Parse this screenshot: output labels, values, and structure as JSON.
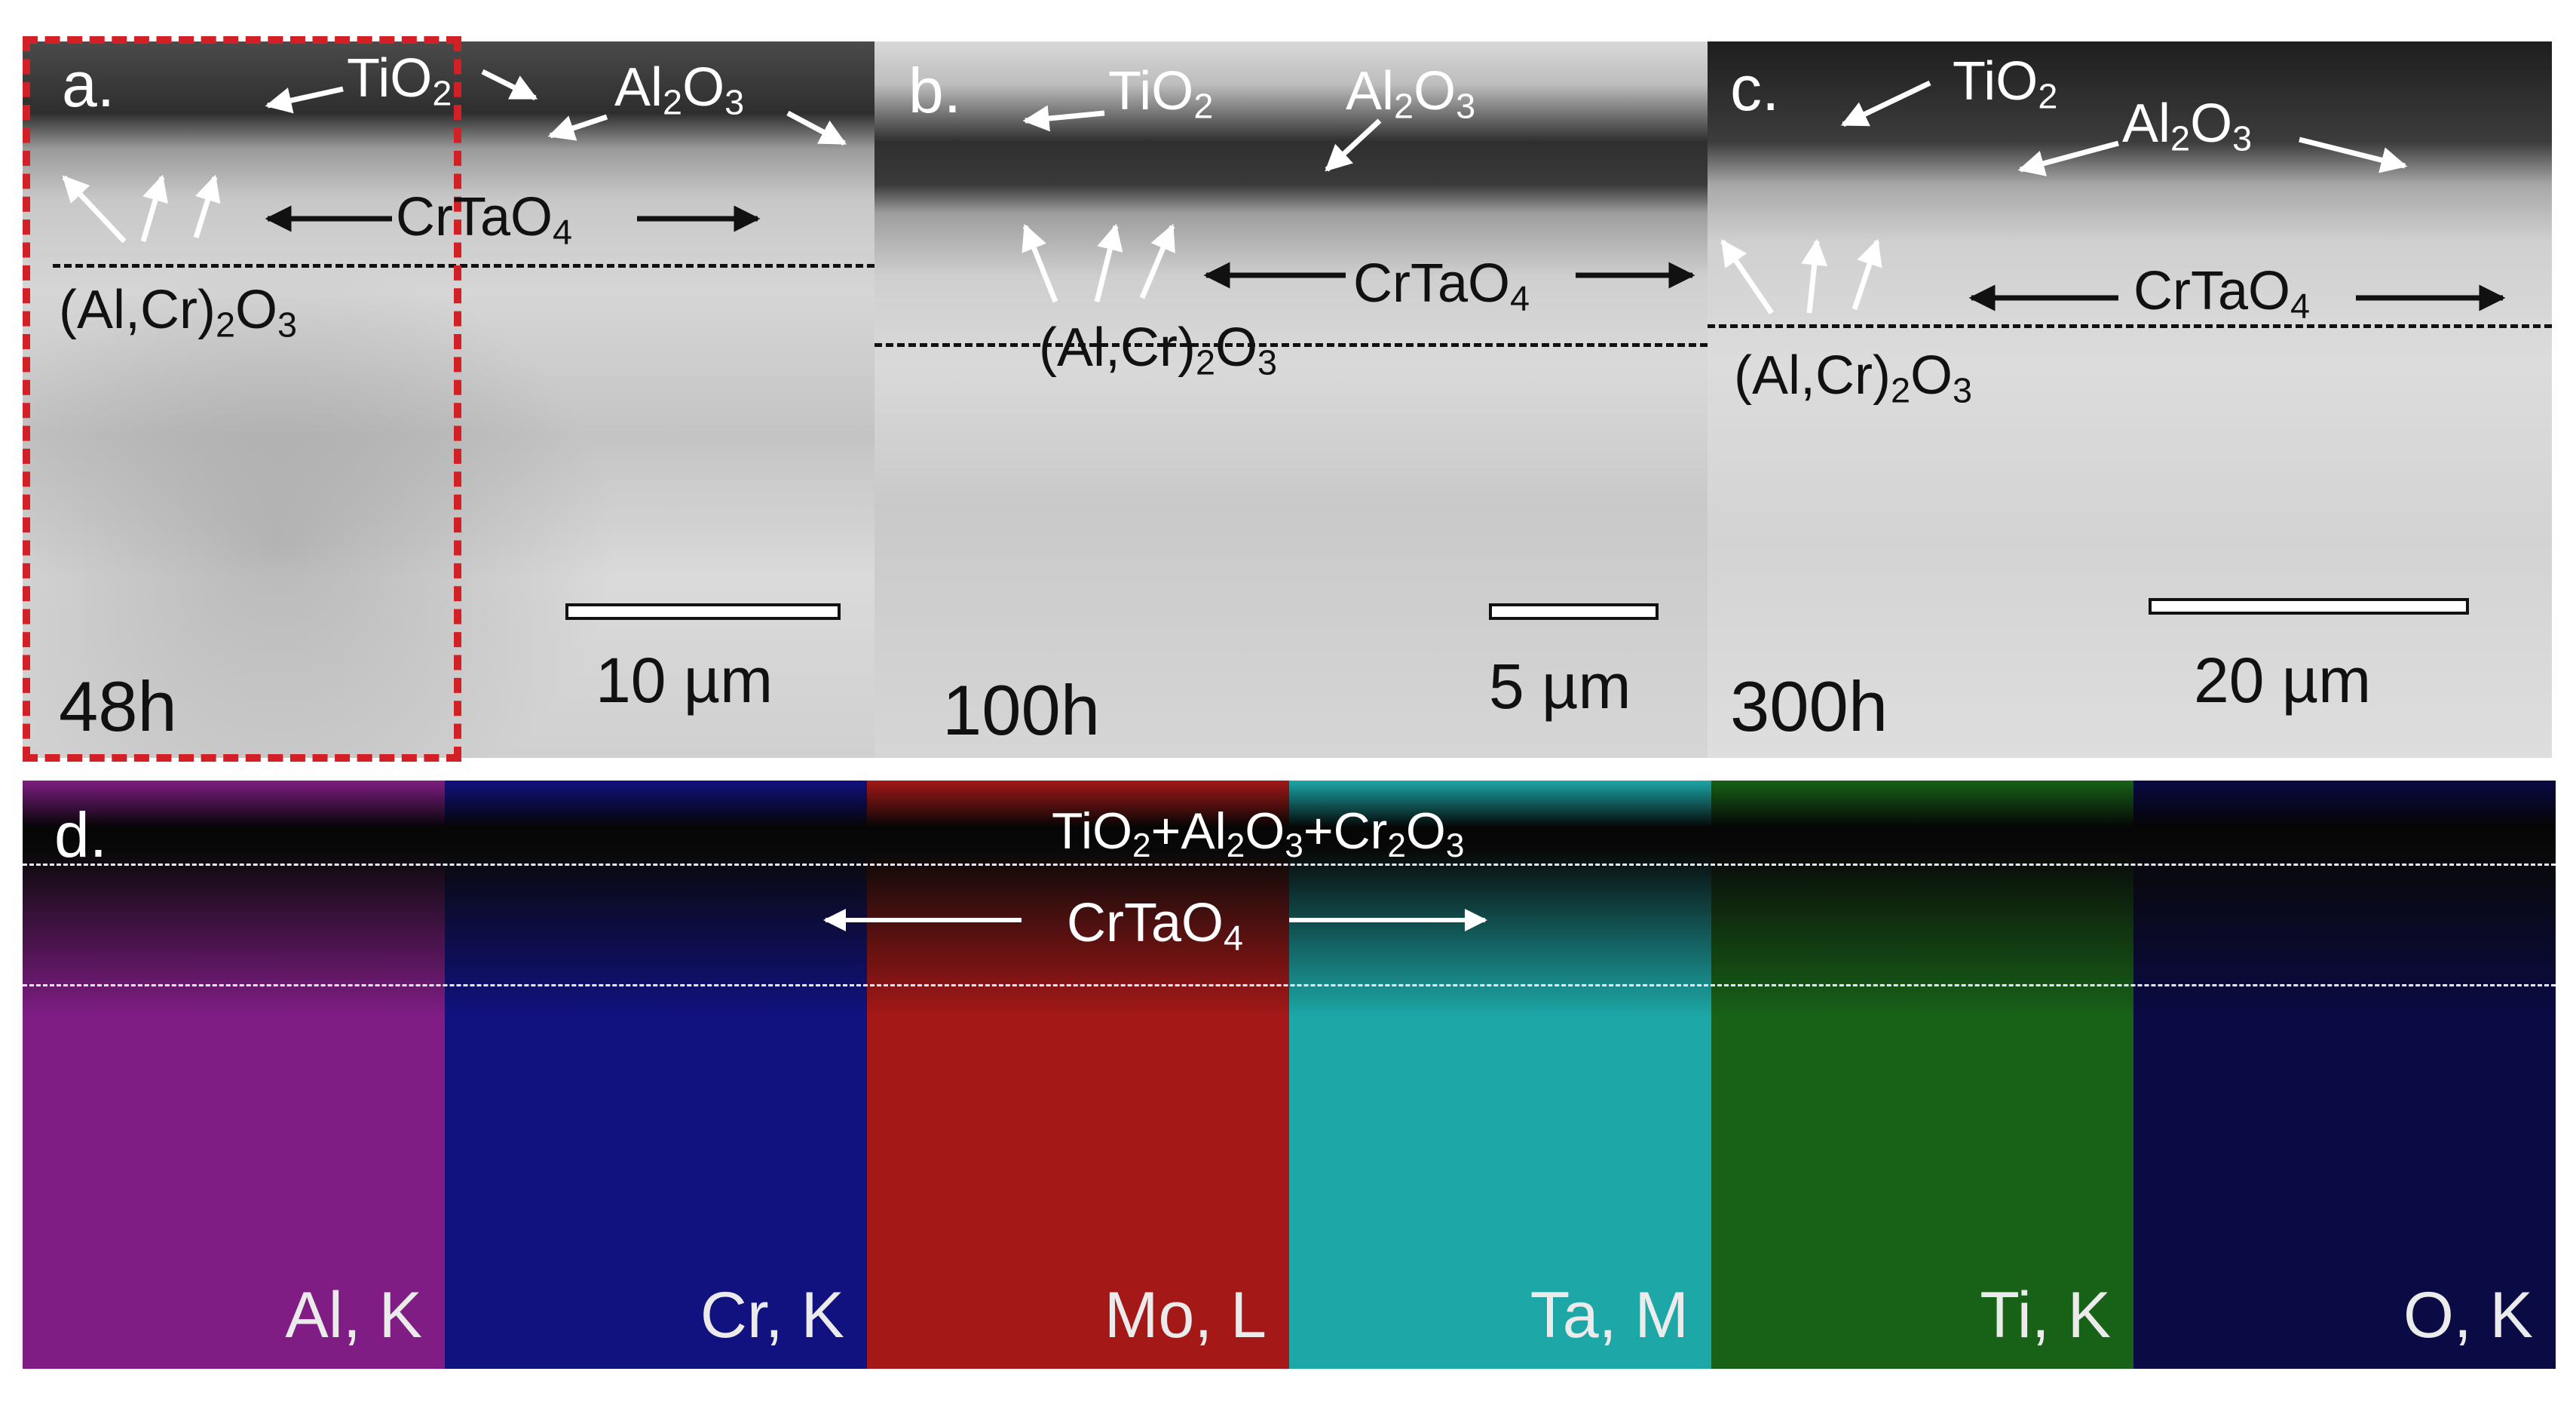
{
  "panels": {
    "a": {
      "letter": "a.",
      "time": "48h",
      "scale": "10 µm",
      "tio2": "TiO",
      "al2o3": "Al",
      "crtao4": "CrTaO",
      "alcr": "(Al,Cr)"
    },
    "b": {
      "letter": "b.",
      "time": "100h",
      "scale": "5 µm",
      "tio2": "TiO",
      "al2o3": "Al",
      "crtao4": "CrTaO",
      "alcr": "(Al,Cr)"
    },
    "c": {
      "letter": "c.",
      "time": "300h",
      "scale": "20 µm",
      "tio2": "TiO",
      "al2o3": "Al",
      "crtao4": "CrTaO",
      "alcr": "(Al,Cr)"
    },
    "d": {
      "letter": "d.",
      "top_layer": "TiO",
      "crtao4": "CrTaO"
    }
  },
  "formula_parts": {
    "two": "2",
    "three": "3",
    "four": "4",
    "o": "O",
    "plus": "+",
    "cr": "Cr"
  },
  "eds_maps": [
    {
      "label": "Al, K",
      "color": "#8a1f8f"
    },
    {
      "label": "Cr, K",
      "color": "#12128a"
    },
    {
      "label": "Mo, L",
      "color": "#b31a1a"
    },
    {
      "label": "Ta, M",
      "color": "#1fb5b5"
    },
    {
      "label": "Ti, K",
      "color": "#1a6a1a"
    },
    {
      "label": "O, K",
      "color": "#0b0b4a"
    }
  ],
  "highlight_color": "#d31f26"
}
